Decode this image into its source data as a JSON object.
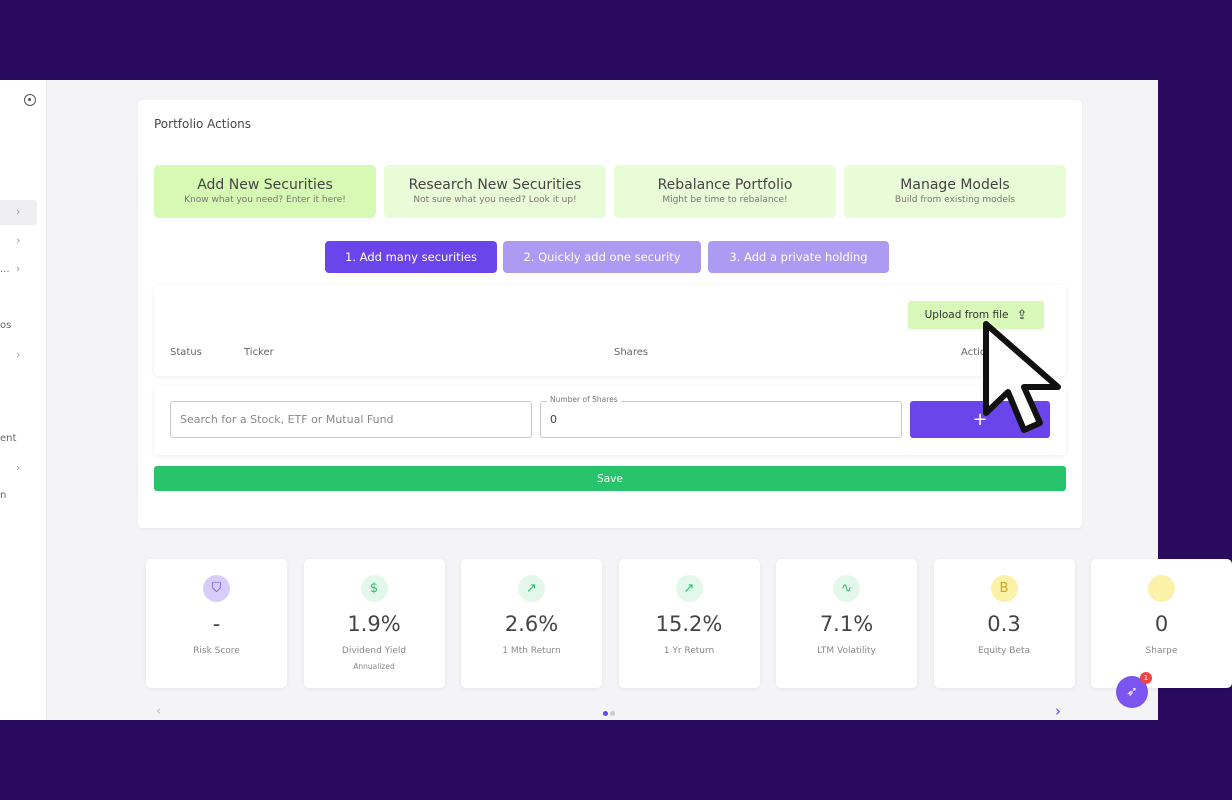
{
  "sidebar": {
    "items": [
      {
        "label": ""
      },
      {
        "label": ""
      },
      {
        "label": "..."
      },
      {
        "label": "os"
      },
      {
        "label": ""
      },
      {
        "label": "ent"
      },
      {
        "label": ""
      },
      {
        "label": "n"
      }
    ]
  },
  "card": {
    "title": "Portfolio Actions"
  },
  "tiles": [
    {
      "title": "Add New Securities",
      "subtitle": "Know what you need? Enter it here!"
    },
    {
      "title": "Research New Securities",
      "subtitle": "Not sure what you need? Look it up!"
    },
    {
      "title": "Rebalance Portfolio",
      "subtitle": "Might be time to rebalance!"
    },
    {
      "title": "Manage Models",
      "subtitle": "Build from existing models"
    }
  ],
  "subtabs": [
    "1. Add many securities",
    "2. Quickly add one security",
    "3. Add a private holding"
  ],
  "table": {
    "upload_label": "Upload from file",
    "headers": [
      "Status",
      "Ticker",
      "Shares",
      "Actions"
    ]
  },
  "inputs": {
    "search_placeholder": "Search for a Stock, ETF or Mutual Fund",
    "shares_label": "Number of Shares",
    "shares_value": "0",
    "add_label": "+"
  },
  "save_label": "Save",
  "metrics": [
    {
      "value": "-",
      "label": "Risk Score",
      "sub": "",
      "icon": "shield-icon",
      "bg": "#d8ccfb",
      "fg": "#6b45ec",
      "glyph": "⛉"
    },
    {
      "value": "1.9%",
      "label": "Dividend Yield",
      "sub": "Annualized",
      "icon": "dollar-icon",
      "bg": "#e3f8ea",
      "fg": "#27c46b",
      "glyph": "$"
    },
    {
      "value": "2.6%",
      "label": "1 Mth Return",
      "sub": "",
      "icon": "trending-up-icon",
      "bg": "#e3f8ea",
      "fg": "#27c46b",
      "glyph": "↗"
    },
    {
      "value": "15.2%",
      "label": "1 Yr Return",
      "sub": "",
      "icon": "trending-up-icon",
      "bg": "#e3f8ea",
      "fg": "#27c46b",
      "glyph": "↗"
    },
    {
      "value": "7.1%",
      "label": "LTM Volatility",
      "sub": "",
      "icon": "activity-icon",
      "bg": "#e3f8ea",
      "fg": "#27c46b",
      "glyph": "∿"
    },
    {
      "value": "0.3",
      "label": "Equity Beta",
      "sub": "",
      "icon": "beta-icon",
      "bg": "#fbf1a8",
      "fg": "#c9a81c",
      "glyph": "B"
    },
    {
      "value": "0",
      "label": "Sharpe",
      "sub": "",
      "icon": "sharpe-icon",
      "bg": "#fbf1a8",
      "fg": "#c9a81c",
      "glyph": ""
    }
  ],
  "chat_badge": "1",
  "colors": {
    "accent": "#6b45ec",
    "save": "#27c46b",
    "tile": "#e9fcd8"
  }
}
